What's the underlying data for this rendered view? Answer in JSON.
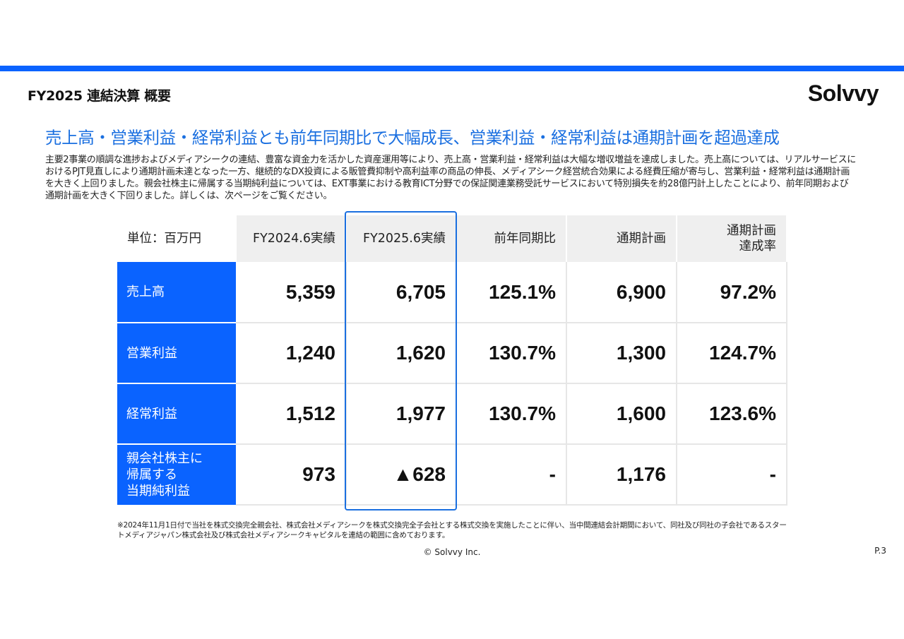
{
  "header": {
    "section_title": "FY2025 連結決算 概要",
    "logo_text": "Solvvy",
    "accent_color": "#0a63ff"
  },
  "headline": "売上高・営業利益・経常利益とも前年同期比で大幅成長、営業利益・経常利益は通期計画を超過達成",
  "body_text": "主要2事業の順調な進捗およびメディアシークの連結、豊富な資金力を活かした資産運用等により、売上高・営業利益・経常利益は大幅な増収増益を達成しました。売上高については、リアルサービスにおけるPJT見直しにより通期計画未達となった一方、継続的なDX投資による販管費抑制や高利益率の商品の伸長、メディアシーク経営統合効果による経費圧縮が寄与し、営業利益・経常利益は通期計画を大きく上回りました。親会社株主に帰属する当期純利益については、EXT事業における教育ICT分野での保証関連業務受託サービスにおいて特別損失を約28億円計上したことにより、前年同期および通期計画を大きく下回りました。詳しくは、次ページをご覧ください。",
  "table": {
    "unit_label": "単位：百万円",
    "columns": [
      "FY2024.6実績",
      "FY2025.6実績",
      "前年同期比",
      "通期計画",
      "通期計画\n達成率"
    ],
    "highlighted_column": "FY2025.6実績",
    "rows": [
      {
        "label": "売上高",
        "values": [
          "5,359",
          "6,705",
          "125.1%",
          "6,900",
          "97.2%"
        ]
      },
      {
        "label": "営業利益",
        "values": [
          "1,240",
          "1,620",
          "130.7%",
          "1,300",
          "124.7%"
        ]
      },
      {
        "label": "経常利益",
        "values": [
          "1,512",
          "1,977",
          "130.7%",
          "1,600",
          "123.6%"
        ]
      },
      {
        "label": "親会社株主に\n帰属する\n当期純利益",
        "values": [
          "973",
          "▲628",
          "-",
          "1,176",
          "-"
        ]
      }
    ]
  },
  "footnote": "※2024年11月1日付で当社を株式交換完全親会社、株式会社メディアシークを株式交換完全子会社とする株式交換を実施したことに伴い、当中間連結会計期間において、同社及び同社の子会社であるスタートメディアジャパン株式会社及び株式会社メディアシークキャピタルを連結の範囲に含めております。",
  "footer": {
    "copyright": "© Solvvy Inc.",
    "page_number": "P.3"
  }
}
